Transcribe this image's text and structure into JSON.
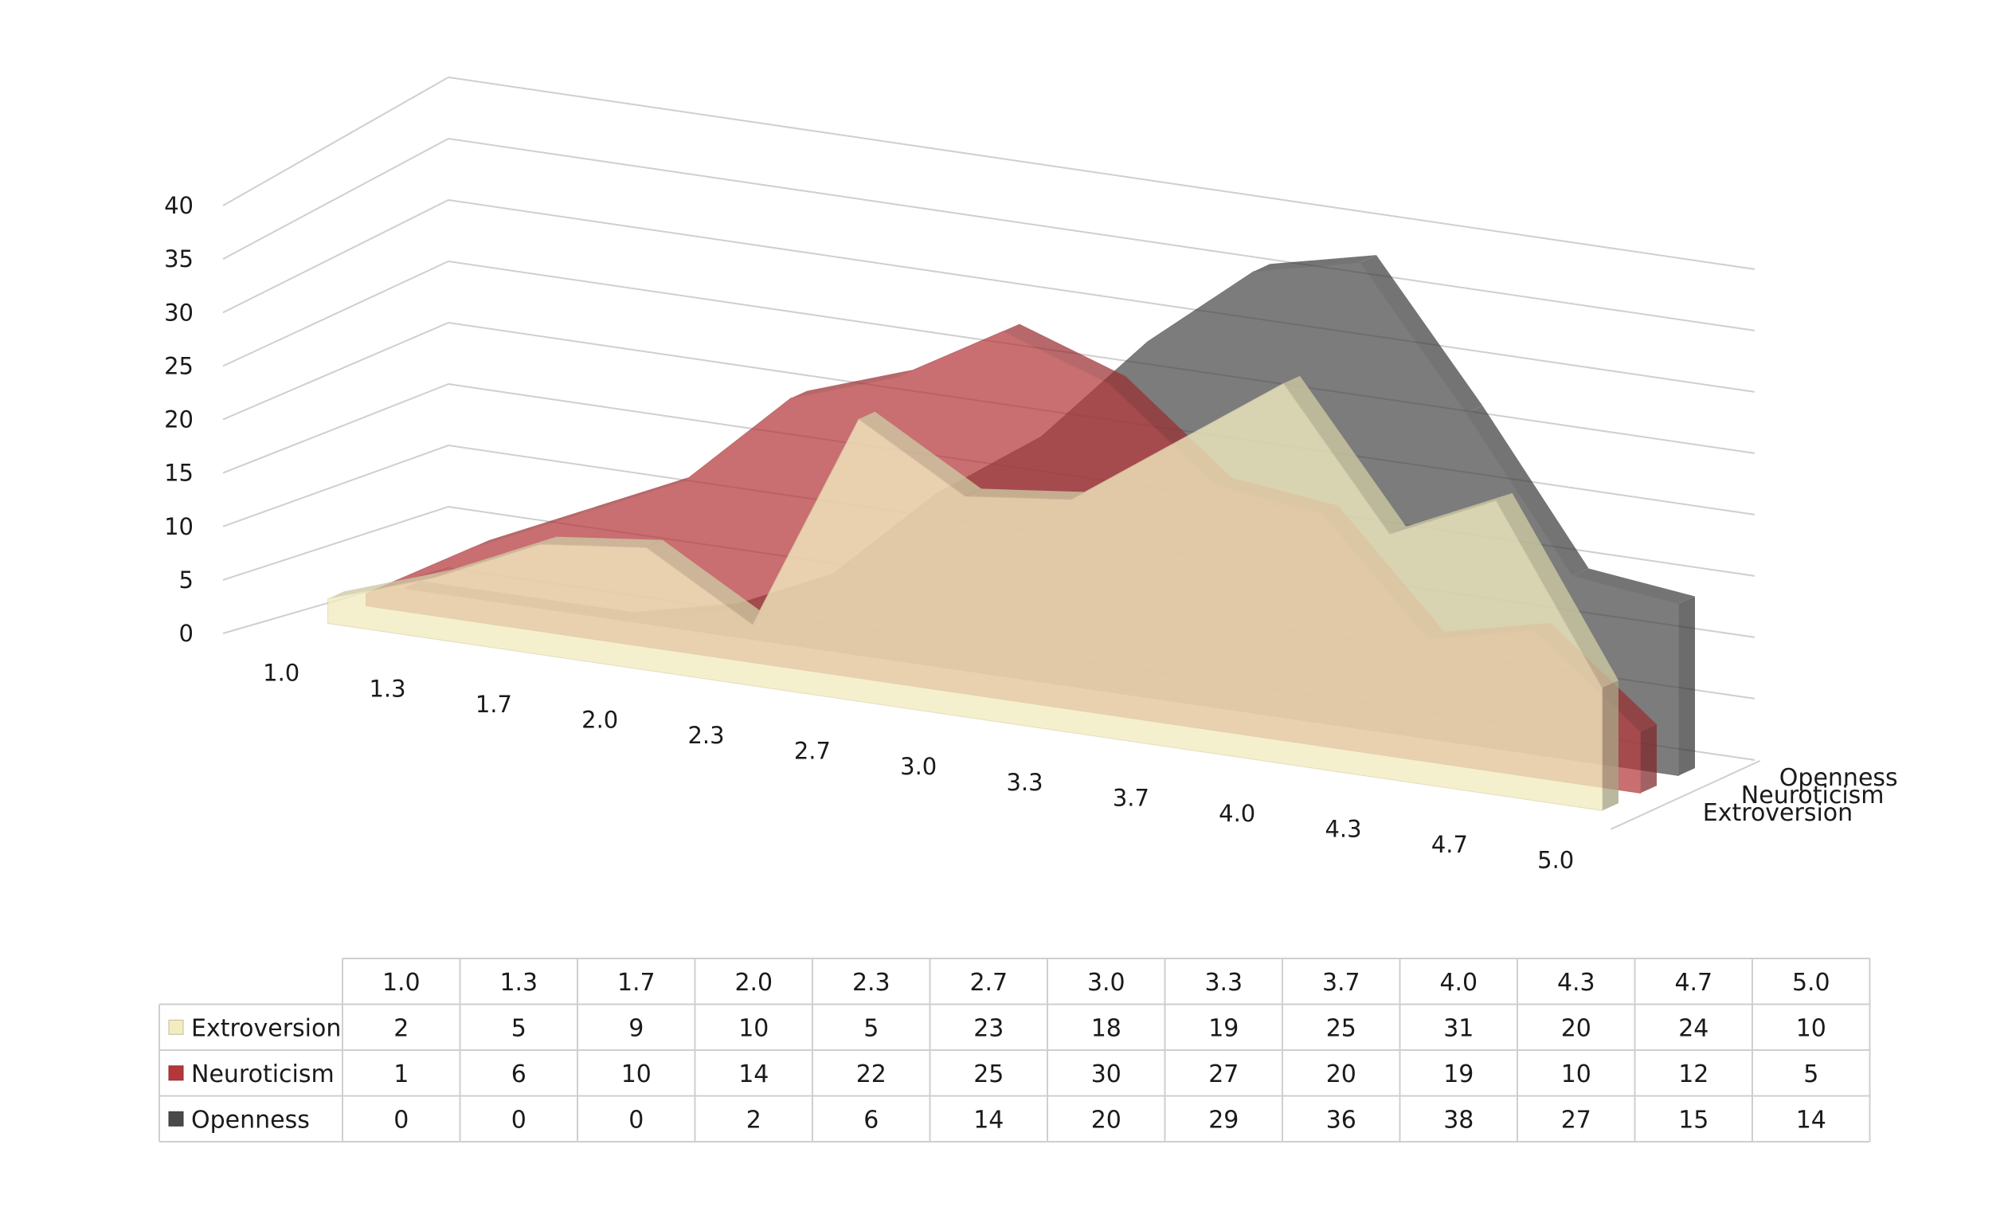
{
  "chart_data": {
    "type": "area",
    "view": "3d",
    "categories": [
      "1.0",
      "1.3",
      "1.7",
      "2.0",
      "2.3",
      "2.7",
      "3.0",
      "3.3",
      "3.7",
      "4.0",
      "4.3",
      "4.7",
      "5.0"
    ],
    "series": [
      {
        "name": "Extroversion",
        "values": [
          2,
          5,
          9,
          10,
          5,
          23,
          18,
          19,
          25,
          31,
          20,
          24,
          10
        ],
        "color": "#f2ecc0"
      },
      {
        "name": "Neuroticism",
        "values": [
          1,
          6,
          10,
          14,
          22,
          25,
          30,
          27,
          20,
          19,
          10,
          12,
          5
        ],
        "color": "#b5373b"
      },
      {
        "name": "Openness",
        "values": [
          0,
          0,
          0,
          2,
          6,
          14,
          20,
          29,
          36,
          38,
          27,
          15,
          14
        ],
        "color": "#4a4a4a"
      }
    ],
    "y_ticks": [
      "0",
      "5",
      "10",
      "15",
      "20",
      "25",
      "30",
      "35",
      "40"
    ],
    "ylim": [
      0,
      40
    ],
    "grid": true,
    "data_table": true
  }
}
